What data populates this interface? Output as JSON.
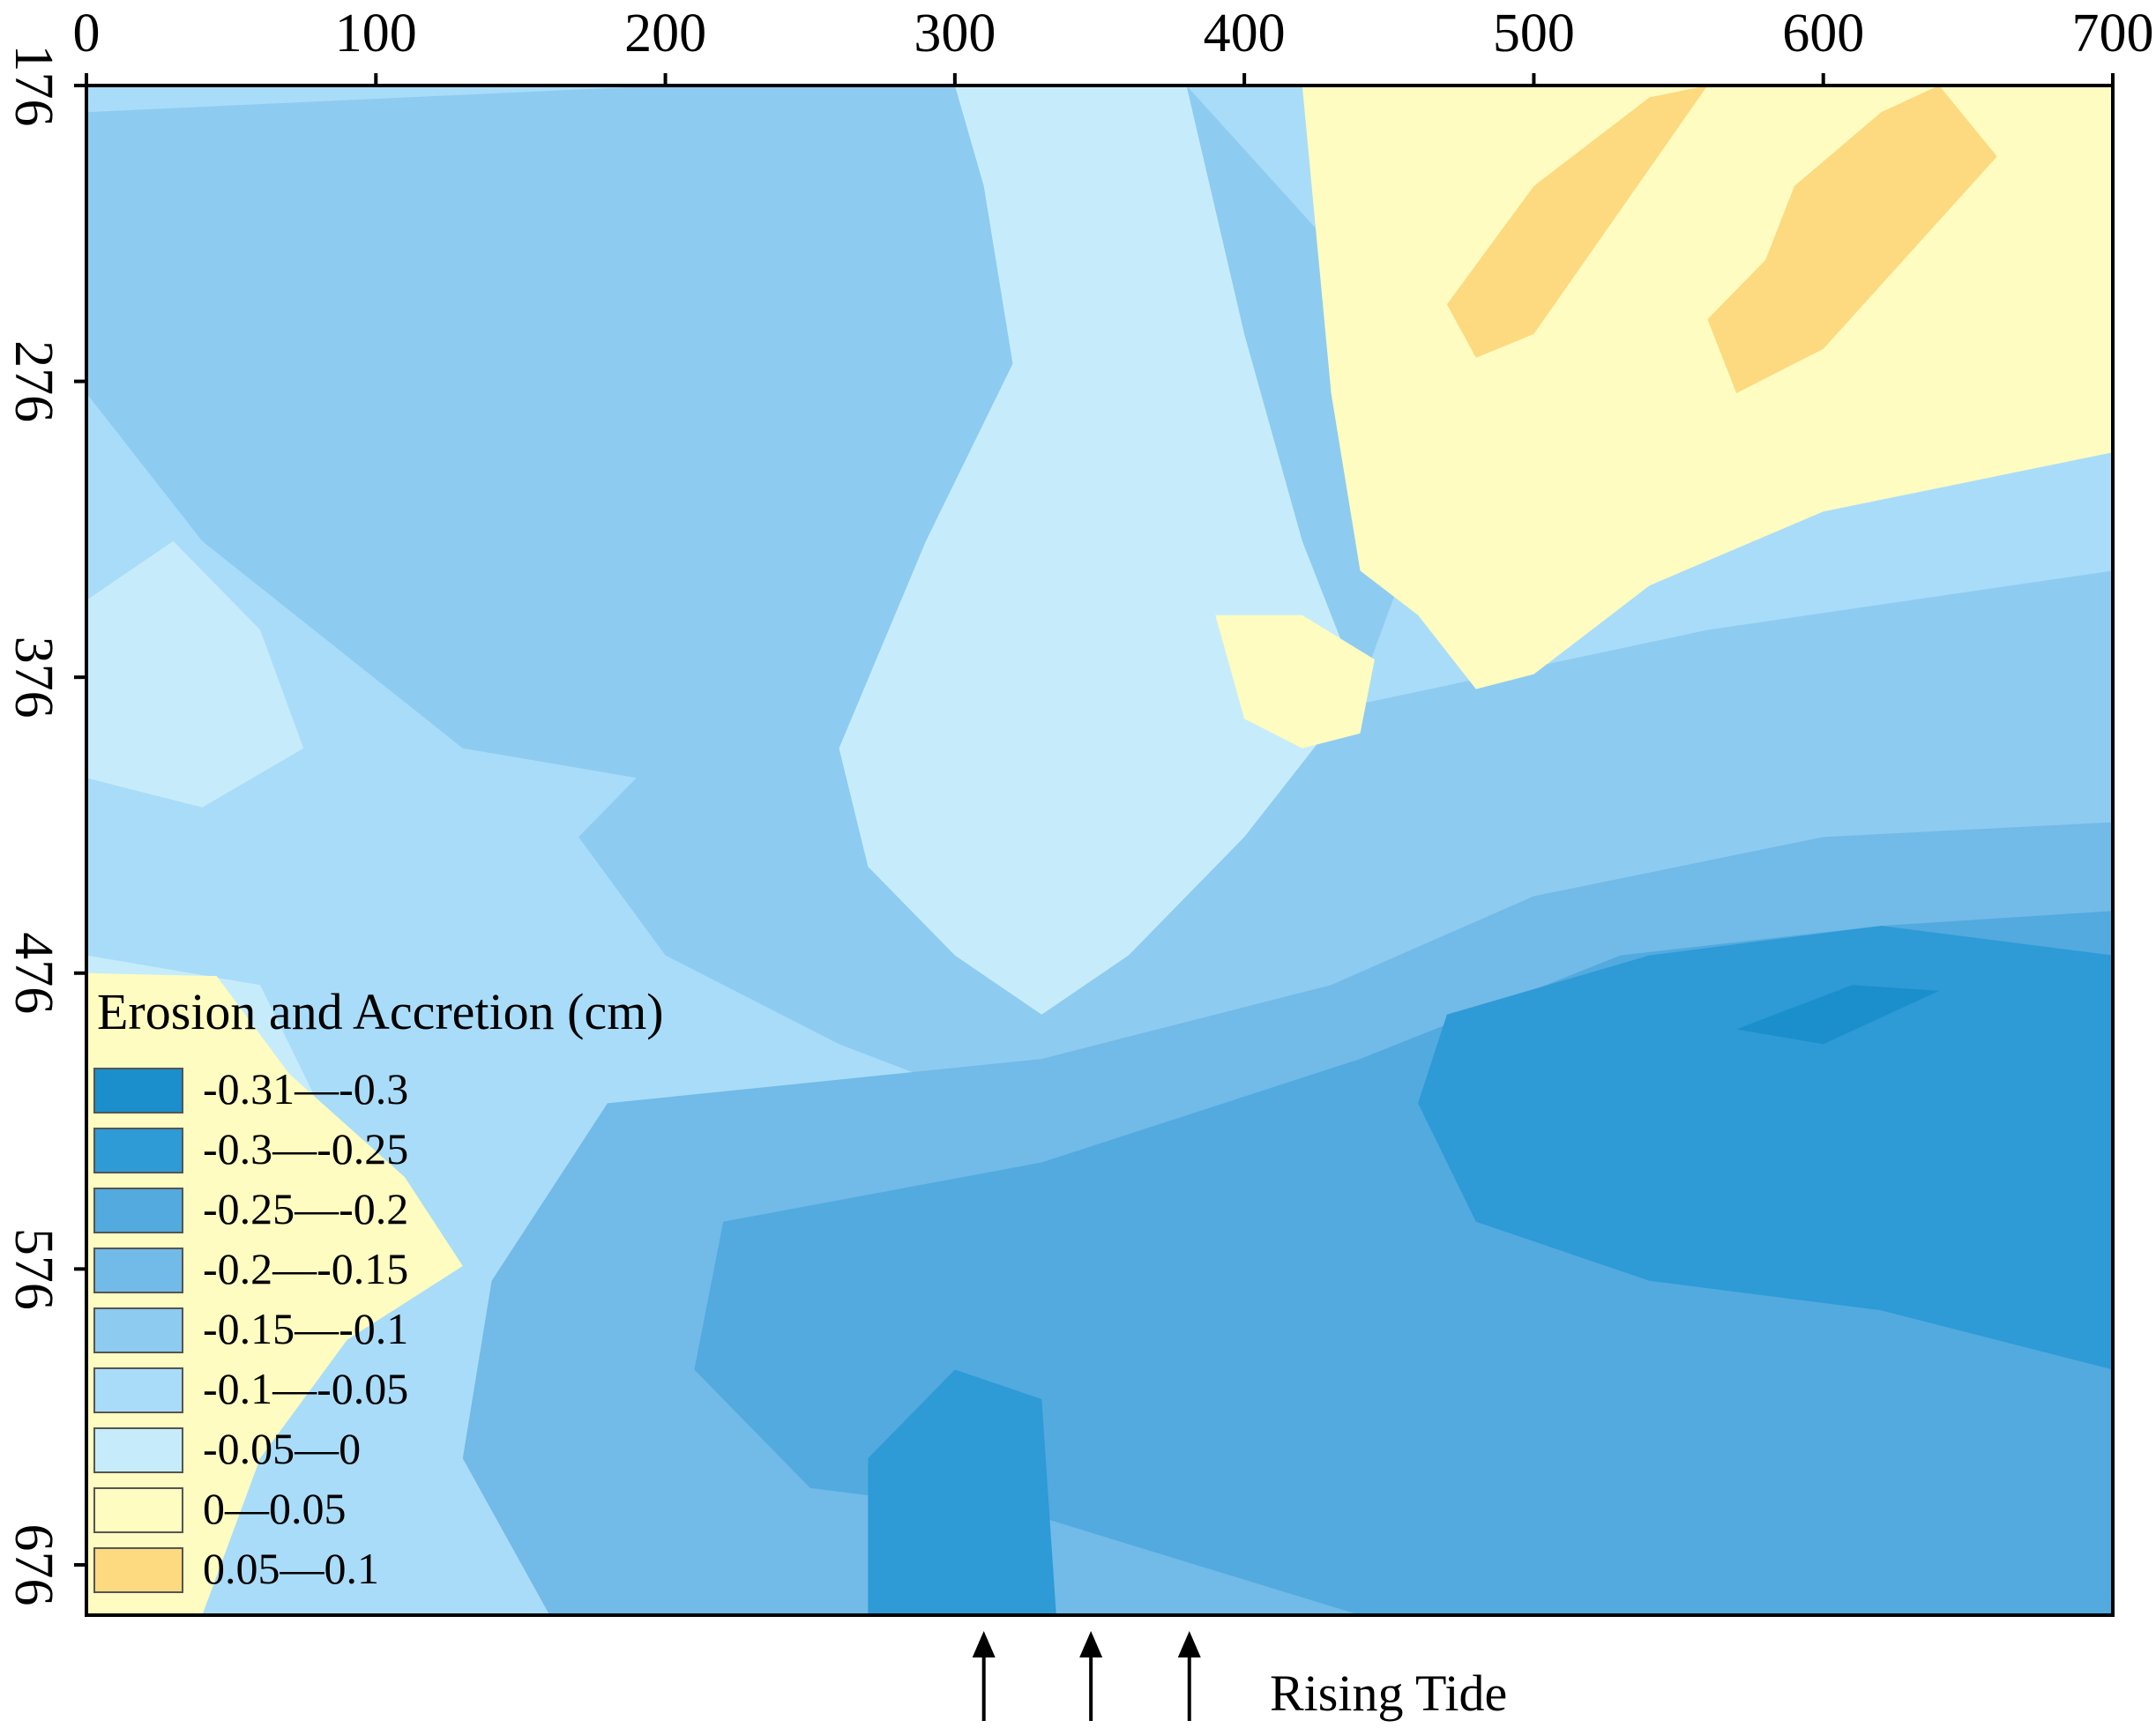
{
  "chart_data": {
    "type": "heatmap",
    "x_ticks": [
      0,
      100,
      200,
      300,
      400,
      500,
      600,
      700
    ],
    "y_ticks": [
      176,
      276,
      376,
      476,
      576,
      676
    ],
    "xlim": [
      0,
      700
    ],
    "ylim": [
      176,
      693
    ],
    "y_direction": "downward",
    "grid": false,
    "legend": {
      "title": "Erosion and Accretion (cm)",
      "placement": "bottom-left",
      "classes": [
        {
          "label": "-0.31—-0.3",
          "range": [
            -0.31,
            -0.3
          ],
          "color": "#1a8fcc"
        },
        {
          "label": "-0.3—-0.25",
          "range": [
            -0.3,
            -0.25
          ],
          "color": "#2e9ad6"
        },
        {
          "label": "-0.25—-0.2",
          "range": [
            -0.25,
            -0.2
          ],
          "color": "#52aadf"
        },
        {
          "label": "-0.2—-0.15",
          "range": [
            -0.2,
            -0.15
          ],
          "color": "#72bae7"
        },
        {
          "label": "-0.15—-0.1",
          "range": [
            -0.15,
            -0.1
          ],
          "color": "#8ecbf0"
        },
        {
          "label": "-0.1—-0.05",
          "range": [
            -0.1,
            -0.05
          ],
          "color": "#a9dcf8"
        },
        {
          "label": "-0.05—0",
          "range": [
            -0.05,
            0
          ],
          "color": "#c6ecfb"
        },
        {
          "label": "0—0.05",
          "range": [
            0,
            0.05
          ],
          "color": "#fefcc0"
        },
        {
          "label": "0.05—0.1",
          "range": [
            0.05,
            0.1
          ],
          "color": "#fdd980"
        }
      ]
    },
    "regions": [
      {
        "class": "-0.1—-0.05",
        "points": [
          [
            0,
            176
          ],
          [
            700,
            176
          ],
          [
            700,
            693
          ],
          [
            0,
            693
          ]
        ]
      },
      {
        "class": "-0.15—-0.1",
        "points": [
          [
            0,
            185
          ],
          [
            200,
            176
          ],
          [
            380,
            176
          ],
          [
            430,
            230
          ],
          [
            470,
            300
          ],
          [
            440,
            380
          ],
          [
            360,
            410
          ],
          [
            250,
            420
          ],
          [
            130,
            400
          ],
          [
            40,
            330
          ],
          [
            0,
            280
          ]
        ]
      },
      {
        "class": "-0.15—-0.1",
        "points": [
          [
            220,
            380
          ],
          [
            330,
            400
          ],
          [
            440,
            385
          ],
          [
            560,
            360
          ],
          [
            630,
            350
          ],
          [
            700,
            340
          ],
          [
            700,
            660
          ],
          [
            560,
            640
          ],
          [
            460,
            600
          ],
          [
            400,
            560
          ],
          [
            340,
            530
          ],
          [
            260,
            500
          ],
          [
            200,
            470
          ],
          [
            170,
            430
          ]
        ]
      },
      {
        "class": "-0.05—0",
        "points": [
          [
            300,
            176
          ],
          [
            380,
            176
          ],
          [
            400,
            260
          ],
          [
            420,
            330
          ],
          [
            440,
            380
          ],
          [
            400,
            430
          ],
          [
            360,
            470
          ],
          [
            330,
            490
          ],
          [
            300,
            470
          ],
          [
            270,
            440
          ],
          [
            260,
            400
          ],
          [
            290,
            330
          ],
          [
            320,
            270
          ],
          [
            310,
            210
          ]
        ]
      },
      {
        "class": "-0.05—0",
        "points": [
          [
            0,
            350
          ],
          [
            30,
            330
          ],
          [
            60,
            360
          ],
          [
            75,
            400
          ],
          [
            40,
            420
          ],
          [
            0,
            410
          ]
        ]
      },
      {
        "class": "-0.05—0",
        "points": [
          [
            0,
            470
          ],
          [
            60,
            480
          ],
          [
            90,
            540
          ],
          [
            70,
            590
          ],
          [
            40,
            640
          ],
          [
            0,
            660
          ]
        ]
      },
      {
        "class": "0—0.05",
        "points": [
          [
            420,
            176
          ],
          [
            700,
            176
          ],
          [
            700,
            300
          ],
          [
            650,
            310
          ],
          [
            600,
            320
          ],
          [
            540,
            345
          ],
          [
            500,
            375
          ],
          [
            480,
            380
          ],
          [
            460,
            355
          ],
          [
            440,
            340
          ],
          [
            430,
            280
          ]
        ]
      },
      {
        "class": "0—0.05",
        "points": [
          [
            0,
            476
          ],
          [
            45,
            477
          ],
          [
            70,
            510
          ],
          [
            110,
            545
          ],
          [
            130,
            575
          ],
          [
            90,
            600
          ],
          [
            60,
            640
          ],
          [
            40,
            693
          ],
          [
            0,
            693
          ]
        ]
      },
      {
        "class": "0—0.05",
        "points": [
          [
            390,
            355
          ],
          [
            420,
            355
          ],
          [
            445,
            370
          ],
          [
            440,
            395
          ],
          [
            420,
            400
          ],
          [
            400,
            390
          ]
        ]
      },
      {
        "class": "0.05—0.1",
        "points": [
          [
            540,
            180
          ],
          [
            560,
            176
          ],
          [
            500,
            260
          ],
          [
            480,
            268
          ],
          [
            470,
            250
          ],
          [
            500,
            210
          ]
        ]
      },
      {
        "class": "0.05—0.1",
        "points": [
          [
            620,
            185
          ],
          [
            640,
            176
          ],
          [
            660,
            200
          ],
          [
            600,
            265
          ],
          [
            570,
            280
          ],
          [
            560,
            255
          ],
          [
            580,
            235
          ],
          [
            590,
            210
          ]
        ]
      },
      {
        "class": "-0.2—-0.15",
        "points": [
          [
            180,
            520
          ],
          [
            330,
            505
          ],
          [
            430,
            480
          ],
          [
            500,
            450
          ],
          [
            600,
            430
          ],
          [
            700,
            425
          ],
          [
            700,
            693
          ],
          [
            160,
            693
          ],
          [
            130,
            640
          ],
          [
            140,
            580
          ]
        ]
      },
      {
        "class": "-0.25—-0.2",
        "points": [
          [
            220,
            560
          ],
          [
            330,
            540
          ],
          [
            440,
            505
          ],
          [
            530,
            470
          ],
          [
            620,
            460
          ],
          [
            700,
            455
          ],
          [
            700,
            693
          ],
          [
            440,
            693
          ],
          [
            330,
            660
          ],
          [
            250,
            650
          ],
          [
            210,
            610
          ]
        ]
      },
      {
        "class": "-0.3—-0.25",
        "points": [
          [
            470,
            490
          ],
          [
            540,
            470
          ],
          [
            620,
            460
          ],
          [
            700,
            470
          ],
          [
            700,
            610
          ],
          [
            620,
            590
          ],
          [
            540,
            580
          ],
          [
            480,
            560
          ],
          [
            460,
            520
          ]
        ]
      },
      {
        "class": "-0.3—-0.25",
        "points": [
          [
            270,
            640
          ],
          [
            300,
            610
          ],
          [
            330,
            620
          ],
          [
            335,
            693
          ],
          [
            270,
            693
          ]
        ]
      },
      {
        "class": "-0.31—-0.3",
        "points": [
          [
            570,
            495
          ],
          [
            610,
            480
          ],
          [
            640,
            482
          ],
          [
            600,
            500
          ]
        ]
      }
    ]
  },
  "annotation": {
    "text": "Rising Tide",
    "arrows_x": [
      310,
      347,
      381
    ]
  }
}
